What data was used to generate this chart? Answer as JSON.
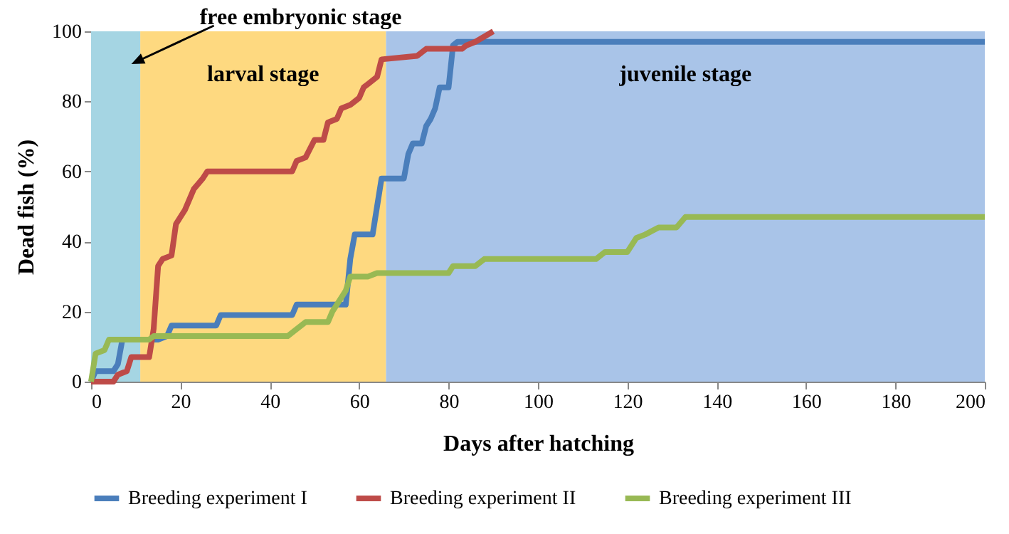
{
  "chart_data": {
    "type": "line",
    "xlabel": "Days after hatching",
    "ylabel": "Dead fish (%)",
    "xlim": [
      0,
      200
    ],
    "xticks": [
      0,
      20,
      40,
      60,
      80,
      100,
      120,
      140,
      160,
      180,
      200
    ],
    "ylim": [
      0,
      100
    ],
    "yticks": [
      0,
      20,
      40,
      60,
      80,
      100
    ],
    "grid": false,
    "legend": "bottom",
    "marker": "none",
    "line_style": "solid",
    "bands": [
      {
        "axis": "x",
        "from": 0,
        "to": 11,
        "label": "free embryonic stage",
        "color": "#a5d5e3"
      },
      {
        "axis": "x",
        "from": 11,
        "to": 66,
        "label": "larval stage",
        "color": "#fed980"
      },
      {
        "axis": "x",
        "from": 66,
        "to": 200,
        "label": "juvenile stage",
        "color": "#a9c4e8"
      }
    ],
    "series": [
      {
        "name": "Breeding experiment I",
        "color": "#4a7ebb",
        "x": [
          0,
          1,
          5,
          6,
          7,
          15,
          17,
          18,
          28,
          29,
          45,
          46,
          57,
          58,
          59,
          63,
          64,
          65,
          70,
          71,
          72,
          74,
          75,
          76,
          77,
          78,
          80,
          81,
          82,
          200
        ],
        "values": [
          0,
          3,
          3,
          5,
          12,
          12,
          13,
          16,
          16,
          19,
          19,
          22,
          22,
          35,
          42,
          42,
          50,
          58,
          58,
          65,
          68,
          68,
          73,
          75,
          78,
          84,
          84,
          96,
          97,
          97
        ]
      },
      {
        "name": "Breeding experiment II",
        "color": "#be4b48",
        "x": [
          0,
          5,
          6,
          8,
          9,
          13,
          14,
          15,
          16,
          18,
          19,
          21,
          23,
          25,
          26,
          45,
          46,
          48,
          50,
          52,
          53,
          55,
          56,
          58,
          60,
          61,
          62,
          64,
          65,
          73,
          75,
          83,
          84,
          86,
          90
        ],
        "values": [
          0,
          0,
          2,
          3,
          7,
          7,
          15,
          33,
          35,
          36,
          45,
          49,
          55,
          58,
          60,
          60,
          63,
          64,
          69,
          69,
          74,
          75,
          78,
          79,
          81,
          84,
          85,
          87,
          92,
          93,
          95,
          95,
          96,
          97,
          100
        ]
      },
      {
        "name": "Breeding experiment III",
        "color": "#98b954",
        "x": [
          0,
          1,
          3,
          4,
          13,
          14,
          44,
          45,
          48,
          53,
          54,
          57,
          58,
          62,
          64,
          80,
          81,
          86,
          88,
          113,
          115,
          120,
          122,
          124,
          127,
          131,
          133,
          200
        ],
        "values": [
          0,
          8,
          9,
          12,
          12,
          13,
          13,
          14,
          17,
          17,
          20,
          26,
          30,
          30,
          31,
          31,
          33,
          33,
          35,
          35,
          37,
          37,
          41,
          42,
          44,
          44,
          47,
          47
        ]
      }
    ]
  }
}
